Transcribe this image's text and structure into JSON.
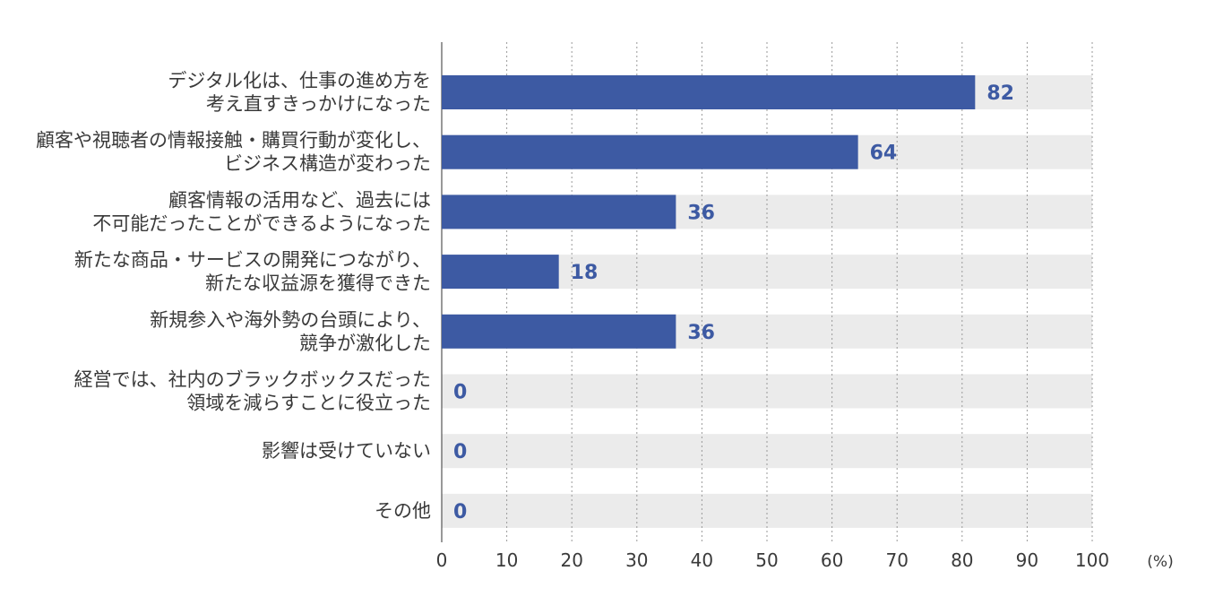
{
  "chart_data": {
    "type": "bar",
    "orientation": "horizontal",
    "categories": [
      [
        "デジタル化は、仕事の進め方を",
        "考え直すきっかけになった"
      ],
      [
        "顧客や視聴者の情報接触・購買行動が変化し、",
        "ビジネス構造が変わった"
      ],
      [
        "顧客情報の活用など、過去には",
        "不可能だったことができるようになった"
      ],
      [
        "新たな商品・サービスの開発につながり、",
        "新たな収益源を獲得できた"
      ],
      [
        "新規参入や海外勢の台頭により、",
        "競争が激化した"
      ],
      [
        "経営では、社内のブラックボックスだった",
        "領域を減らすことに役立った"
      ],
      [
        "影響は受けていない"
      ],
      [
        "その他"
      ]
    ],
    "values": [
      82,
      64,
      36,
      18,
      36,
      0,
      0,
      0
    ],
    "xlim": [
      0,
      100
    ],
    "xticks": [
      0,
      10,
      20,
      30,
      40,
      50,
      60,
      70,
      80,
      90,
      100
    ],
    "unit": "(%)",
    "grid": true,
    "colors": {
      "bar": "#3d5aa3",
      "track": "#ebebeb",
      "value_label": "#3d5aa3",
      "grid": "#9a9a9a",
      "text": "#3a3a3a"
    }
  }
}
